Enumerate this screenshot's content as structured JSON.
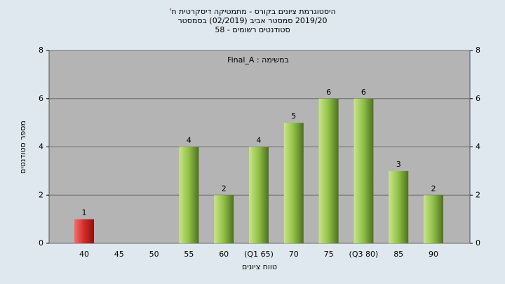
{
  "chart_data": {
    "type": "bar",
    "title": [
      "היסטוגרמת ציונים בקורס - מתמטיקה דיסקרטית ח'",
      "2019/20 סמסטר אביב (02/2019) בסמסטר",
      "סטודנטים רשומים - 58"
    ],
    "annotation": "במשימה : Final_A",
    "x_label": "טווח ציונים",
    "y_label": "מספר סטודנטים",
    "categories": [
      "40",
      "45",
      "50",
      "55",
      "60",
      "(Q1 65)",
      "70",
      "75",
      "(Q3 80)",
      "85",
      "90"
    ],
    "values": [
      1,
      0,
      0,
      4,
      2,
      4,
      5,
      6,
      6,
      3,
      2
    ],
    "colors": [
      "#d42a2a",
      "#8fbf45",
      "#8fbf45",
      "#8fbf45",
      "#8fbf45",
      "#8fbf45",
      "#8fbf45",
      "#8fbf45",
      "#8fbf45",
      "#8fbf45",
      "#8fbf45"
    ],
    "ylim": [
      0,
      8
    ],
    "yticks": [
      0,
      2,
      4,
      6,
      8
    ],
    "y2lim": [
      0,
      8
    ],
    "y2ticks": [
      0,
      2,
      4,
      6,
      8
    ],
    "grid": true
  }
}
